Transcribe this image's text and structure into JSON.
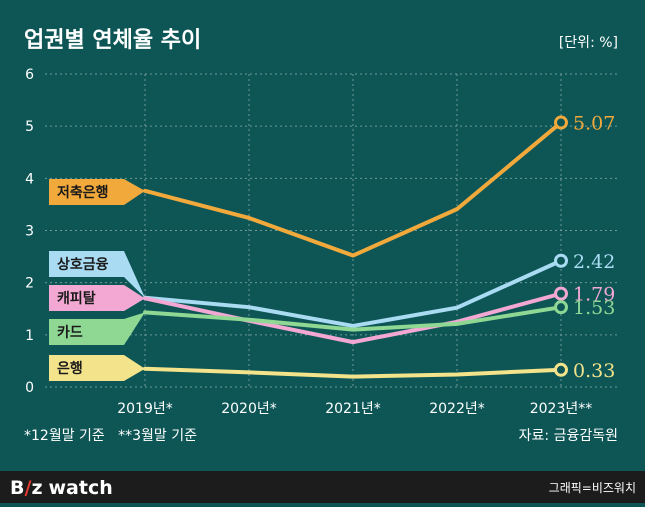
{
  "chart_data": {
    "type": "line",
    "title": "업권별 연체율 추이",
    "unit_label": "[단위: %]",
    "categories": [
      "2019년*",
      "2020년*",
      "2021년*",
      "2022년*",
      "2023년**"
    ],
    "ylim": [
      0,
      6
    ],
    "yticks": [
      "0",
      "1",
      "2",
      "3",
      "4",
      "5",
      "6"
    ],
    "grid": true,
    "series": [
      {
        "name": "저축은행",
        "values": [
          3.76,
          3.24,
          2.52,
          3.41,
          5.07
        ],
        "end_label": "5.07",
        "color": "#f2a93b",
        "label_fill": "#f2a93b",
        "label_text_color": "#1a1a1a"
      },
      {
        "name": "상호금융",
        "values": [
          1.71,
          1.53,
          1.17,
          1.52,
          2.42
        ],
        "end_label": "2.42",
        "color": "#a9dcf3",
        "label_fill": "#a9dcf3",
        "label_text_color": "#1a1a1a"
      },
      {
        "name": "캐피탈",
        "values": [
          1.7,
          1.27,
          0.86,
          1.25,
          1.79
        ],
        "end_label": "1.79",
        "color": "#f3a8d3",
        "label_fill": "#f3a8d3",
        "label_text_color": "#1a1a1a"
      },
      {
        "name": "카드",
        "values": [
          1.43,
          1.29,
          1.1,
          1.21,
          1.53
        ],
        "end_label": "1.53",
        "color": "#8fd894",
        "label_fill": "#8fd894",
        "label_text_color": "#1a1a1a"
      },
      {
        "name": "은행",
        "values": [
          0.35,
          0.28,
          0.2,
          0.24,
          0.33
        ],
        "end_label": "0.33",
        "color": "#f3e38a",
        "label_fill": "#f3e38a",
        "label_text_color": "#1a1a1a"
      }
    ]
  },
  "notes": {
    "footnote": "*12월말 기준   **3월말 기준",
    "source": "자료: 금융감독원"
  },
  "footer": {
    "logo_b": "B",
    "logo_slash": "/",
    "logo_z": "z",
    "logo_watch": "watch",
    "credit": "그래픽=비즈워치"
  },
  "colors": {
    "background": "#0e5656",
    "grid": "#6f9898",
    "text": "#ffffff",
    "footer_bg": "#1c1c1c",
    "logo_accent": "#e63a2e"
  }
}
